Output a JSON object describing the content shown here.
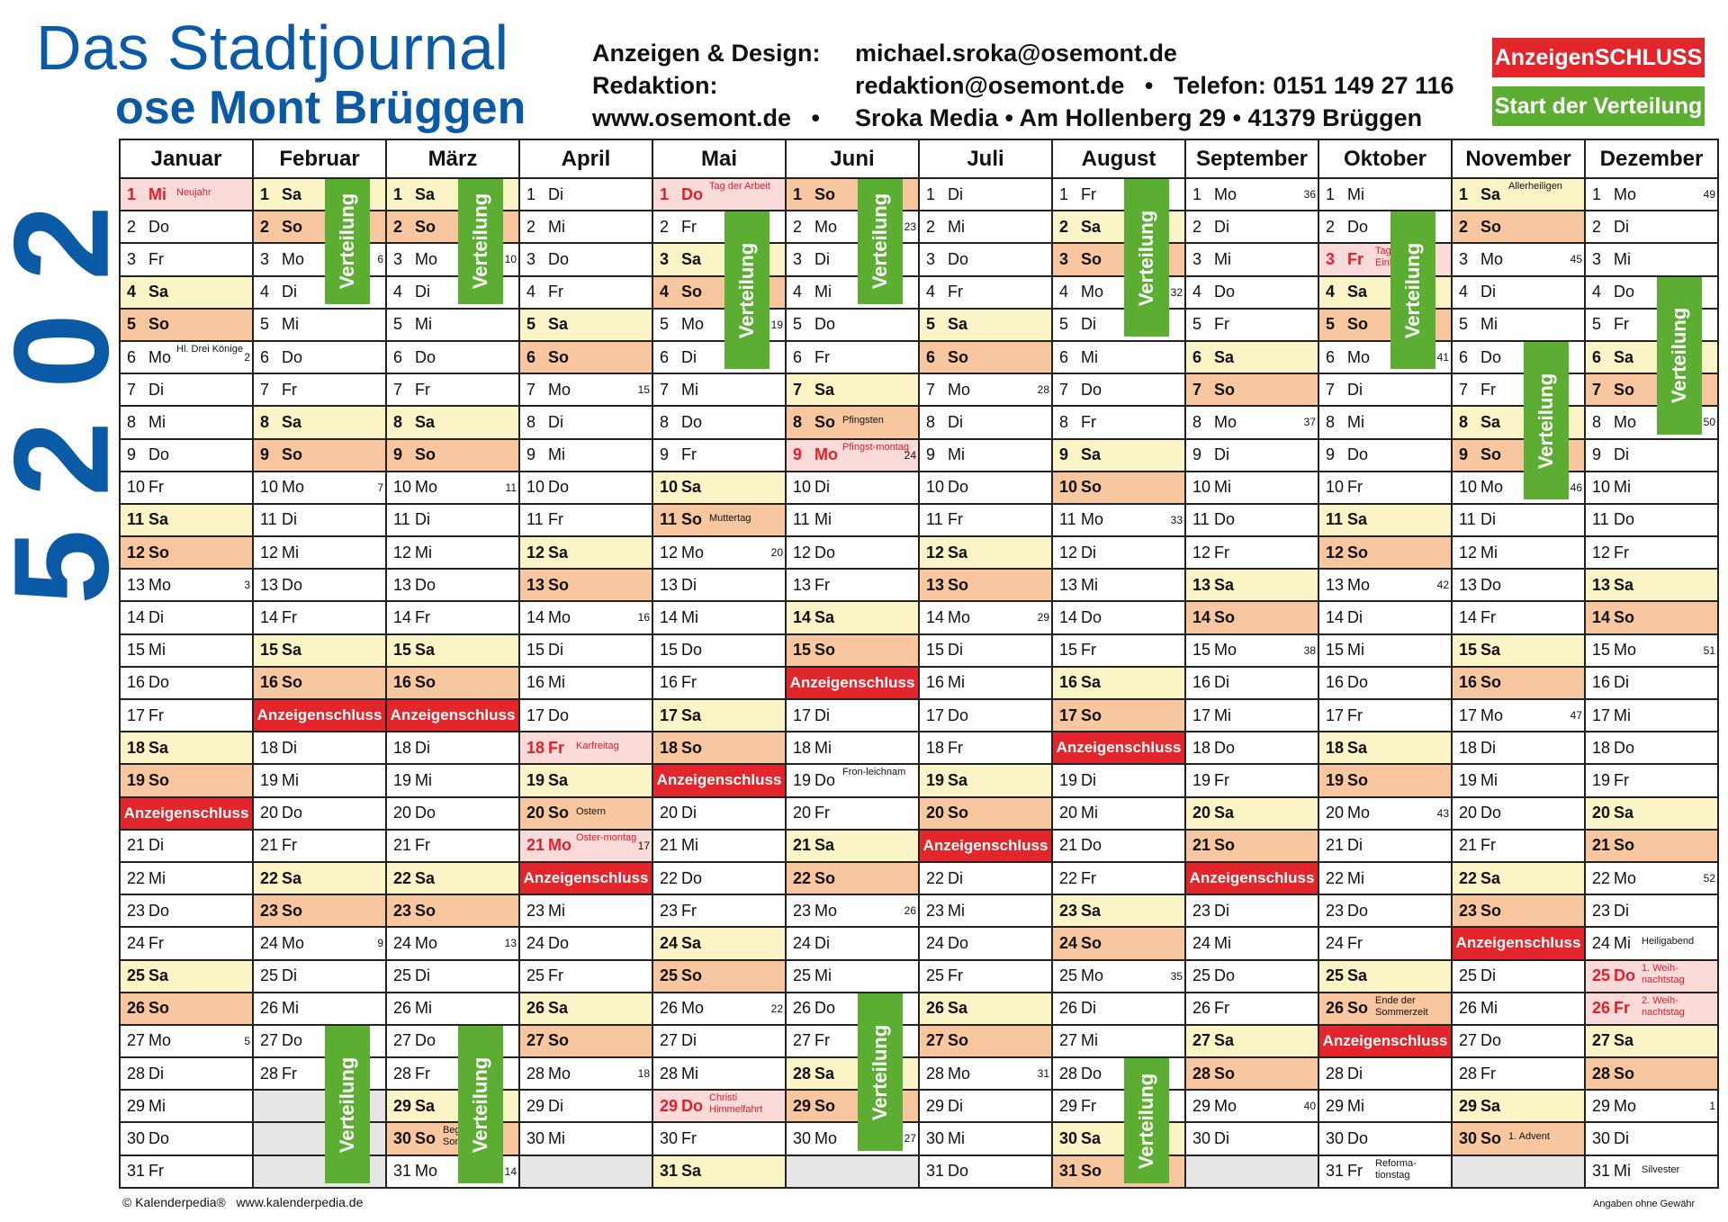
{
  "header": {
    "title_line1": "Das Stadtjournal",
    "title_line2": "ose Mont Brüggen",
    "label_ads": "Anzeigen & Design:",
    "value_ads": "michael.sroka@osemont.de",
    "label_editorial": "Redaktion:",
    "value_editorial": "redaktion@osemont.de   •   Telefon: 0151 149 27 116",
    "label_web": "www.osemont.de   •",
    "value_address": "Sroka Media • Am Hollenberg 29 • 41379 Brüggen",
    "legend_deadline": "AnzeigenSCHLUSS",
    "legend_distribution": "Start der Verteilung"
  },
  "year_digits": [
    "2",
    "0",
    "2",
    "5"
  ],
  "labels": {
    "deadline": "Anzeigenschluss",
    "distribution": "Verteilung"
  },
  "months": [
    "Januar",
    "Februar",
    "März",
    "April",
    "Mai",
    "Juni",
    "Juli",
    "August",
    "September",
    "Oktober",
    "November",
    "Dezember"
  ],
  "weekdays": [
    "Mo",
    "Di",
    "Mi",
    "Do",
    "Fr",
    "Sa",
    "So"
  ],
  "year": 2025,
  "holidays": {
    "1-1": "Neujahr",
    "4-18": "Karfreitag",
    "4-21": "Oster-montag",
    "5-1": "Tag der Arbeit",
    "6-9": "Pfingst-montag",
    "5-29": "Christi Himmelfahrt",
    "10-3": "Tag der Dt. Einheit",
    "12-25": "1. Weih-nachtstag",
    "12-26": "2. Weih-nachtstag"
  },
  "notes": {
    "1-6": "Hl. Drei Könige",
    "4-20": "Ostern",
    "5-11": "Muttertag",
    "6-8": "Pfingsten",
    "6-19": "Fron-leichnam",
    "3-30": "Beginn der Sommerzeit",
    "10-26": "Ende der Sommerzeit",
    "10-31": "Reforma-tionstag",
    "11-1": "Allerheiligen",
    "11-30": "1. Advent",
    "12-24": "Heiligabend",
    "12-31": "Silvester"
  },
  "deadlines": [
    "1-20",
    "2-17",
    "3-17",
    "4-22",
    "5-19",
    "6-16",
    "7-21",
    "8-18",
    "9-22",
    "10-27",
    "11-24"
  ],
  "distributions": [
    {
      "month": 2,
      "start": 1,
      "len": 4
    },
    {
      "month": 3,
      "start": 1,
      "len": 4
    },
    {
      "month": 5,
      "start": 2,
      "len": 5
    },
    {
      "month": 6,
      "start": 1,
      "len": 4
    },
    {
      "month": 8,
      "start": 1,
      "len": 5
    },
    {
      "month": 10,
      "start": 2,
      "len": 5
    },
    {
      "month": 11,
      "start": 6,
      "len": 5
    },
    {
      "month": 12,
      "start": 4,
      "len": 5
    },
    {
      "month": 2,
      "start": 27,
      "len": 5
    },
    {
      "month": 3,
      "start": 27,
      "len": 5
    },
    {
      "month": 6,
      "start": 26,
      "len": 5
    },
    {
      "month": 8,
      "start": 28,
      "len": 4
    }
  ],
  "footer": {
    "left": "© Kalenderpedia®   www.kalenderpedia.de",
    "right": "Angaben ohne Gewähr"
  },
  "colors": {
    "brand_blue": "#0b5aa6",
    "deadline_red": "#e3262b",
    "distribution_green": "#5cae32",
    "saturday": "#fbf4c7",
    "sunday": "#f8c7a0",
    "holiday": "#fbdada"
  }
}
